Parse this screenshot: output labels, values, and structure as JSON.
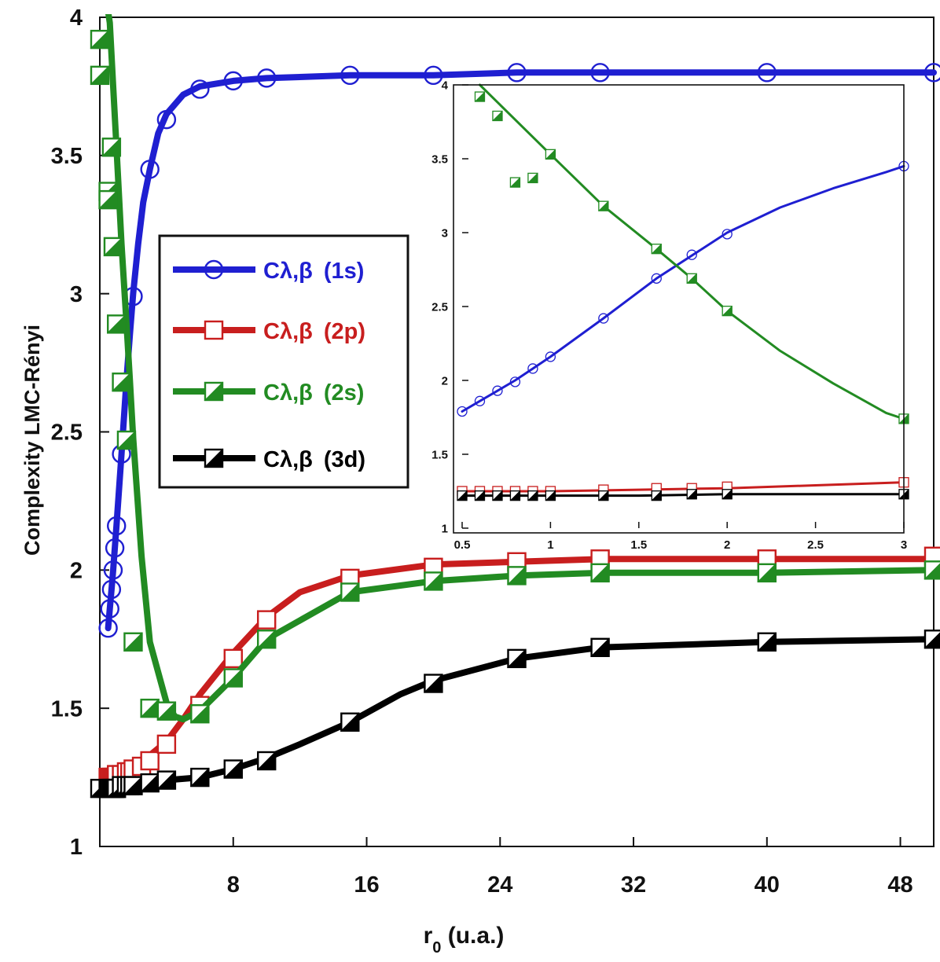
{
  "chart_data": [
    {
      "type": "line",
      "title": "",
      "xlabel_main": "r",
      "xlabel_sub": "0",
      "xlabel_rest": " (u.a.)",
      "ylabel": "Complexity LMC-Rényi",
      "xlim": [
        0,
        50
      ],
      "ylim": [
        1,
        4
      ],
      "xticks": [
        8,
        16,
        24,
        32,
        40,
        48
      ],
      "yticks": [
        1,
        1.5,
        2,
        2.5,
        3,
        3.5,
        4
      ],
      "grid": false,
      "legend_position": "left-middle",
      "series": [
        {
          "name": "Cλ,β (1s)",
          "label_main": "Cλ,β",
          "label_state": "(1s)",
          "color": "#1f1fd1",
          "marker": "circle",
          "x": [
            0.5,
            0.6,
            0.7,
            0.8,
            0.9,
            1.0,
            1.3,
            1.6,
            1.8,
            2.0,
            2.3,
            2.6,
            3,
            3.5,
            4,
            5,
            6,
            8,
            10,
            15,
            20,
            25,
            30,
            40,
            50
          ],
          "y": [
            1.79,
            1.86,
            1.93,
            2.0,
            2.08,
            2.16,
            2.42,
            2.69,
            2.85,
            3.0,
            3.18,
            3.33,
            3.45,
            3.58,
            3.65,
            3.72,
            3.75,
            3.77,
            3.78,
            3.79,
            3.79,
            3.8,
            3.8,
            3.8,
            3.8
          ],
          "marker_x": [
            0.5,
            0.6,
            0.7,
            0.8,
            0.9,
            1.0,
            1.3,
            2.0,
            3.0,
            4.0,
            6.0,
            8.0,
            10,
            15,
            20,
            25,
            30,
            40,
            50
          ],
          "marker_y": [
            1.79,
            1.86,
            1.93,
            2.0,
            2.08,
            2.16,
            2.42,
            2.99,
            3.45,
            3.63,
            3.74,
            3.77,
            3.78,
            3.79,
            3.79,
            3.8,
            3.8,
            3.8,
            3.8
          ]
        },
        {
          "name": "Cλ,β (2p)",
          "label_main": "Cλ,β",
          "label_state": "(2p)",
          "color": "#c81e1e",
          "marker": "square-open",
          "x": [
            0.5,
            1,
            2,
            3,
            4,
            5,
            6,
            8,
            10,
            12,
            15,
            20,
            25,
            30,
            40,
            50
          ],
          "y": [
            1.25,
            1.26,
            1.29,
            1.33,
            1.38,
            1.46,
            1.55,
            1.7,
            1.83,
            1.92,
            1.98,
            2.02,
            2.03,
            2.04,
            2.04,
            2.04
          ],
          "marker_x": [
            0.5,
            0.6,
            0.7,
            0.8,
            0.9,
            1.0,
            1.3,
            1.6,
            1.8,
            2.0,
            2.5,
            3.0,
            4,
            6,
            8,
            10,
            15,
            20,
            25,
            30,
            40,
            50
          ],
          "marker_y": [
            1.25,
            1.25,
            1.25,
            1.25,
            1.25,
            1.26,
            1.26,
            1.27,
            1.27,
            1.28,
            1.29,
            1.31,
            1.37,
            1.51,
            1.68,
            1.82,
            1.97,
            2.01,
            2.03,
            2.04,
            2.04,
            2.05
          ]
        },
        {
          "name": "Cλ,β (2s)",
          "label_main": "Cλ,β",
          "label_state": "(2s)",
          "color": "#228b22",
          "marker": "square-half",
          "x": [
            0.5,
            0.6,
            0.8,
            1.0,
            1.3,
            1.6,
            1.8,
            2.0,
            2.5,
            3.0,
            4,
            4.5,
            5,
            6,
            8,
            10,
            15,
            20,
            25,
            30,
            40,
            50
          ],
          "y": [
            4.05,
            3.98,
            3.75,
            3.53,
            3.18,
            2.89,
            2.69,
            2.48,
            2.05,
            1.74,
            1.52,
            1.47,
            1.46,
            1.49,
            1.61,
            1.75,
            1.92,
            1.96,
            1.98,
            1.99,
            1.99,
            2.0
          ],
          "marker_x": [
            0,
            0,
            0.5,
            0.5,
            0.7,
            0.8,
            1.0,
            1.3,
            1.6,
            2.0,
            3.0,
            4.0,
            6.0,
            8.0,
            10,
            15,
            20,
            25,
            30,
            40,
            50
          ],
          "marker_y": [
            3.92,
            3.79,
            3.37,
            3.34,
            3.53,
            3.17,
            2.89,
            2.68,
            2.47,
            1.74,
            1.5,
            1.49,
            1.48,
            1.61,
            1.75,
            1.92,
            1.96,
            1.98,
            1.99,
            1.99,
            2.0
          ]
        },
        {
          "name": "Cλ,β (3d)",
          "label_main": "Cλ,β",
          "label_state": "(3d)",
          "color": "#000000",
          "marker": "square-half-black",
          "x": [
            0,
            1,
            2,
            3,
            4,
            6,
            8,
            10,
            12,
            15,
            18,
            20,
            25,
            30,
            40,
            50
          ],
          "y": [
            1.21,
            1.21,
            1.22,
            1.23,
            1.24,
            1.25,
            1.28,
            1.32,
            1.37,
            1.45,
            1.55,
            1.6,
            1.68,
            1.72,
            1.74,
            1.75
          ],
          "marker_x": [
            0,
            0.5,
            0.6,
            0.7,
            0.8,
            0.9,
            1.0,
            1.3,
            1.6,
            1.8,
            2.0,
            3.0,
            4.0,
            6.0,
            8.0,
            10,
            15,
            20,
            25,
            30,
            40,
            50
          ],
          "marker_y": [
            1.21,
            1.21,
            1.21,
            1.21,
            1.21,
            1.21,
            1.21,
            1.22,
            1.22,
            1.22,
            1.22,
            1.23,
            1.24,
            1.25,
            1.28,
            1.31,
            1.45,
            1.59,
            1.68,
            1.72,
            1.74,
            1.75
          ]
        }
      ]
    },
    {
      "type": "line",
      "title": "",
      "xlabel": "",
      "ylabel": "",
      "xlim": [
        0.5,
        3
      ],
      "ylim": [
        1,
        4
      ],
      "xticks": [
        0.5,
        1,
        1.5,
        2,
        2.5,
        3
      ],
      "yticks": [
        1,
        1.5,
        2,
        2.5,
        3,
        3.5,
        4
      ],
      "grid": false,
      "series": [
        {
          "color": "#1f1fd1",
          "marker": "circle",
          "x": [
            0.5,
            0.6,
            0.7,
            0.8,
            0.9,
            1.0,
            1.3,
            1.6,
            2.0,
            2.3,
            2.6,
            2.9,
            3.0
          ],
          "y": [
            1.79,
            1.86,
            1.93,
            2.0,
            2.08,
            2.16,
            2.42,
            2.69,
            3.0,
            3.17,
            3.3,
            3.41,
            3.45
          ],
          "marker_x": [
            0.5,
            0.6,
            0.7,
            0.8,
            0.9,
            1.0,
            1.3,
            1.6,
            1.8,
            2.0,
            3.0
          ],
          "marker_y": [
            1.79,
            1.86,
            1.93,
            1.99,
            2.08,
            2.16,
            2.42,
            2.69,
            2.85,
            2.99,
            3.45
          ]
        },
        {
          "color": "#c81e1e",
          "marker": "square-open",
          "x": [
            0.5,
            1.0,
            1.5,
            2.0,
            2.5,
            3.0
          ],
          "y": [
            1.25,
            1.25,
            1.26,
            1.27,
            1.29,
            1.31
          ],
          "marker_x": [
            0.5,
            0.6,
            0.7,
            0.8,
            0.9,
            1.0,
            1.3,
            1.6,
            1.8,
            2.0,
            3.0
          ],
          "marker_y": [
            1.25,
            1.25,
            1.25,
            1.25,
            1.25,
            1.25,
            1.26,
            1.27,
            1.27,
            1.28,
            1.31
          ]
        },
        {
          "color": "#228b22",
          "marker": "square-half",
          "x": [
            0.6,
            1.0,
            1.3,
            1.6,
            1.8,
            2.0,
            2.3,
            2.6,
            2.9,
            3.0
          ],
          "y": [
            4.0,
            3.53,
            3.18,
            2.89,
            2.69,
            2.47,
            2.2,
            1.98,
            1.78,
            1.74
          ],
          "marker_x": [
            0.6,
            0.7,
            0.8,
            0.9,
            1.0,
            1.3,
            1.6,
            1.8,
            2.0,
            3.0
          ],
          "marker_y": [
            3.92,
            3.79,
            3.34,
            3.37,
            3.53,
            3.18,
            2.89,
            2.69,
            2.47,
            1.74
          ]
        },
        {
          "color": "#000000",
          "marker": "square-half-black",
          "x": [
            0.5,
            1.0,
            1.5,
            2.0,
            2.5,
            3.0
          ],
          "y": [
            1.22,
            1.22,
            1.22,
            1.23,
            1.23,
            1.23
          ],
          "marker_x": [
            0.5,
            0.6,
            0.7,
            0.8,
            0.9,
            1.0,
            1.3,
            1.6,
            1.8,
            2.0,
            3.0
          ],
          "marker_y": [
            1.22,
            1.22,
            1.22,
            1.22,
            1.22,
            1.22,
            1.22,
            1.22,
            1.23,
            1.23,
            1.23
          ]
        }
      ]
    }
  ]
}
